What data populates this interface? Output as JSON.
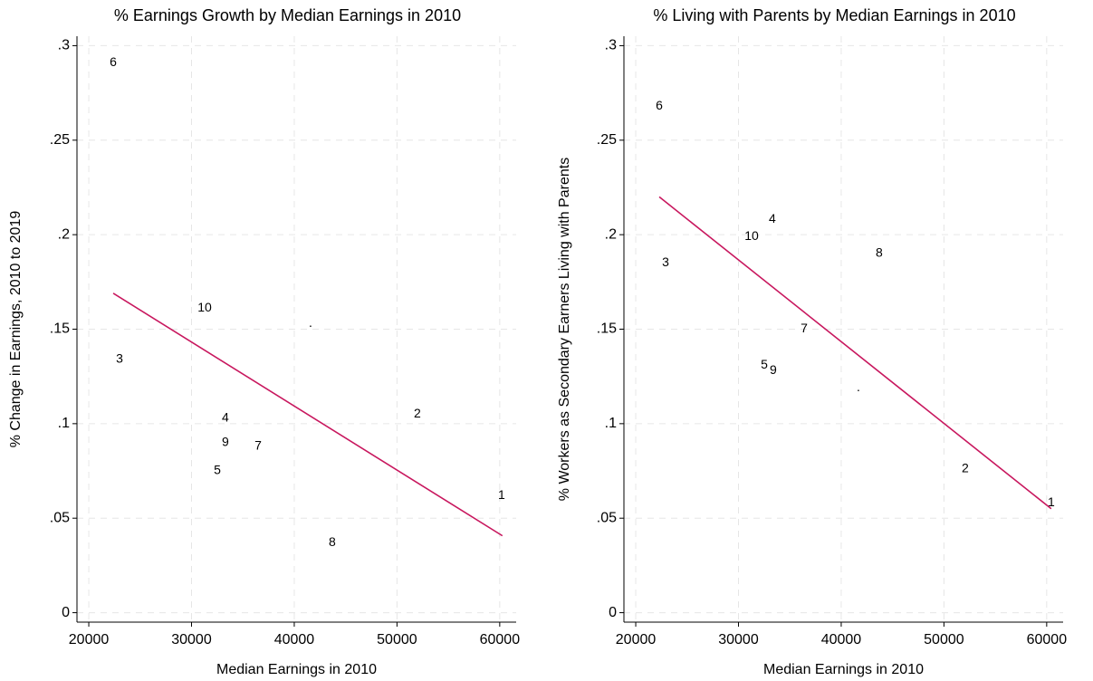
{
  "chart_data": [
    {
      "type": "scatter",
      "title": "% Earnings Growth by Median Earnings in 2010",
      "x_label": "Median Earnings in 2010",
      "y_label": "% Change in Earnings, 2010 to 2019",
      "labels": [
        "6",
        "3",
        "10",
        "4",
        "9",
        "5",
        "7",
        ".",
        "2",
        "1",
        "8"
      ],
      "x": [
        22380,
        23000,
        31280,
        33300,
        33300,
        32510,
        36480,
        41590,
        51980,
        60180,
        43700
      ],
      "values": [
        0.291,
        0.134,
        0.161,
        0.103,
        0.09,
        0.075,
        0.088,
        0.153,
        0.105,
        0.062,
        0.037
      ],
      "fit_line": {
        "x": [
          22380,
          60260
        ],
        "values": [
          0.169,
          0.0407
        ],
        "color": "#c8175e"
      },
      "xlim": [
        18850,
        61600
      ],
      "ylim": [
        -0.005,
        0.305
      ],
      "xticks": [
        20000,
        30000,
        40000,
        50000,
        60000
      ],
      "yticks": [
        0,
        {
          "value": 0.05,
          "label": ".05"
        },
        {
          "value": 0.1,
          "label": ".1"
        },
        {
          "value": 0.15,
          "label": ".15"
        },
        {
          "value": 0.2,
          "label": ".2"
        },
        {
          "value": 0.25,
          "label": ".25"
        },
        {
          "value": 0.3,
          "label": ".3"
        }
      ],
      "grid": true
    },
    {
      "type": "scatter",
      "title": "% Living with Parents by Median Earnings in 2010",
      "x_label": "Median Earnings in 2010",
      "y_label": "% Workers as Secondary Earners Living with Parents",
      "labels": [
        "6",
        "3",
        "4",
        "10",
        "8",
        "7",
        "5",
        "9",
        ".",
        "2",
        "1"
      ],
      "x": [
        22290,
        22910,
        33300,
        31280,
        43700,
        36390,
        32510,
        33390,
        41670,
        52070,
        60440
      ],
      "values": [
        0.268,
        0.185,
        0.208,
        0.199,
        0.19,
        0.15,
        0.131,
        0.128,
        0.119,
        0.076,
        0.058
      ],
      "fit_line": {
        "x": [
          22290,
          60440
        ],
        "values": [
          0.22,
          0.055
        ],
        "color": "#c8175e"
      },
      "xlim": [
        18850,
        61600
      ],
      "ylim": [
        -0.005,
        0.305
      ],
      "xticks": [
        20000,
        30000,
        40000,
        50000,
        60000
      ],
      "yticks": [
        0,
        {
          "value": 0.05,
          "label": ".05"
        },
        {
          "value": 0.1,
          "label": ".1"
        },
        {
          "value": 0.15,
          "label": ".15"
        },
        {
          "value": 0.2,
          "label": ".2"
        },
        {
          "value": 0.25,
          "label": ".25"
        },
        {
          "value": 0.3,
          "label": ".3"
        }
      ],
      "grid": true
    }
  ]
}
